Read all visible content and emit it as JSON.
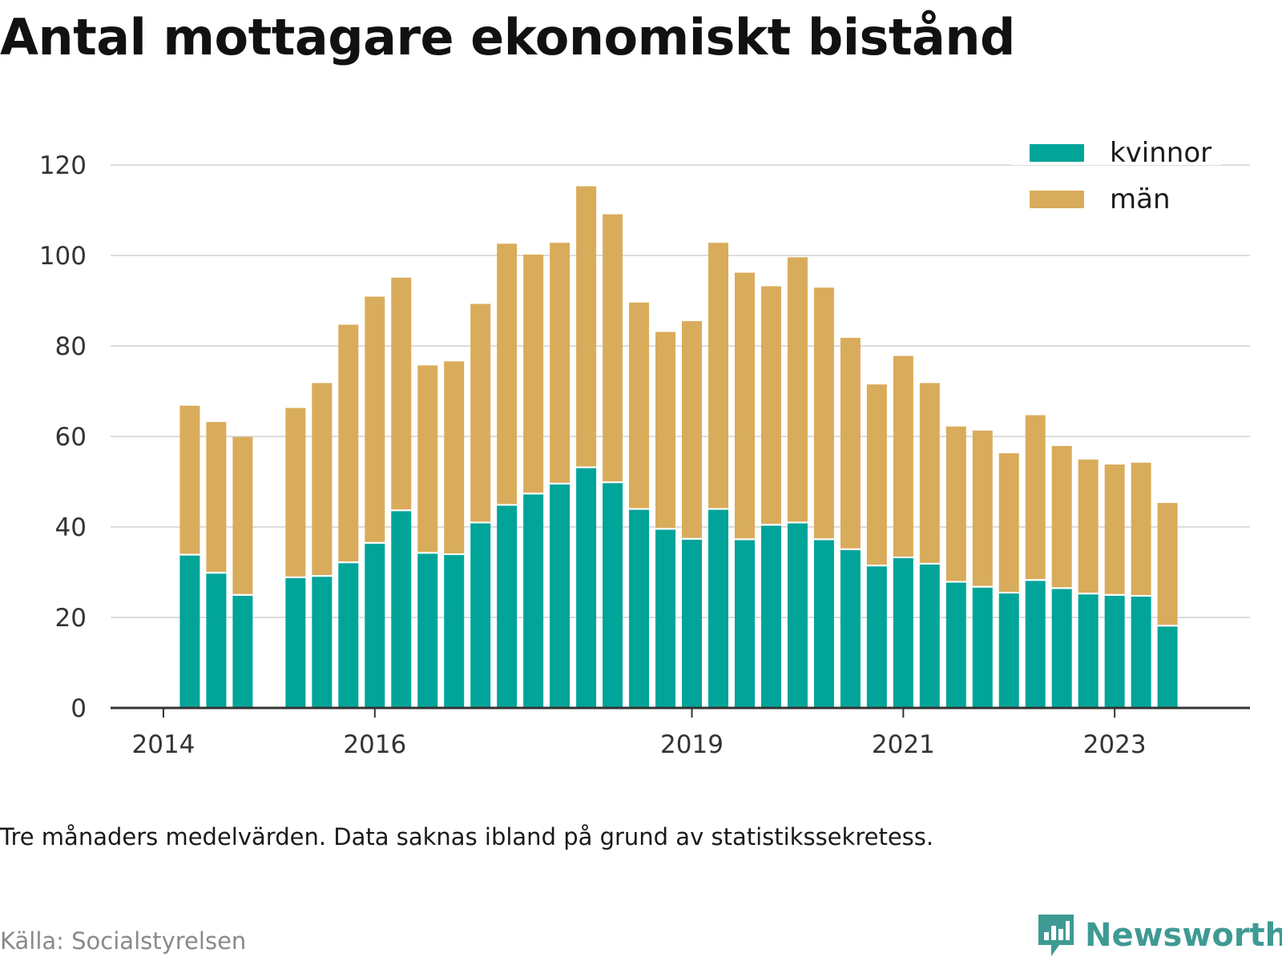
{
  "header": {
    "title": "Antal mottagare ekonomiskt bistånd"
  },
  "footer": {
    "note": "Tre månaders medelvärden. Data saknas ibland på grund av statistikssekretess.",
    "source": "Källa: Socialstyrelsen",
    "brand": "Newsworthy"
  },
  "colors": {
    "kvinnor": "#00a499",
    "man": "#d9ac5b",
    "grid": "#dcdcdc",
    "axis": "#333333",
    "brand": "#3e9a93"
  },
  "chart_data": {
    "type": "bar",
    "stacked": true,
    "title": "Antal mottagare ekonomiskt bistånd",
    "xlabel": "",
    "ylabel": "",
    "ylim": [
      0,
      120
    ],
    "yticks": [
      0,
      20,
      40,
      60,
      80,
      100,
      120
    ],
    "xticks": [
      {
        "label": "2014",
        "x": 2014.0
      },
      {
        "label": "2016",
        "x": 2016.0
      },
      {
        "label": "2019",
        "x": 2019.0
      },
      {
        "label": "2021",
        "x": 2021.0
      },
      {
        "label": "2023",
        "x": 2023.0
      }
    ],
    "x": [
      2014.25,
      2014.5,
      2014.75,
      2015.25,
      2015.5,
      2015.75,
      2016.0,
      2016.25,
      2016.5,
      2016.75,
      2017.0,
      2017.25,
      2017.5,
      2017.75,
      2018.0,
      2018.25,
      2018.5,
      2018.75,
      2019.0,
      2019.25,
      2019.5,
      2019.75,
      2020.0,
      2020.25,
      2020.5,
      2020.75,
      2021.0,
      2021.25,
      2021.5,
      2021.75,
      2022.0,
      2022.25,
      2022.5,
      2022.75,
      2023.0,
      2023.25,
      2023.5,
      2023.75
    ],
    "series": [
      {
        "name": "kvinnor",
        "values": [
          33.7,
          29.7,
          24.8,
          28.7,
          29.0,
          32.0,
          36.3,
          43.5,
          34.1,
          33.8,
          40.8,
          44.7,
          47.2,
          49.4,
          53.0,
          49.7,
          43.8,
          39.4,
          37.2,
          43.8,
          37.1,
          40.3,
          40.8,
          37.1,
          34.9,
          31.3,
          33.1,
          31.7,
          27.7,
          26.6,
          25.3,
          28.1,
          26.3,
          25.1,
          24.8,
          24.6,
          18.0,
          0
        ]
      },
      {
        "name": "män",
        "values": [
          33.1,
          33.5,
          35.1,
          37.6,
          42.8,
          52.7,
          54.6,
          51.6,
          41.6,
          42.8,
          48.5,
          57.9,
          53.0,
          53.4,
          62.3,
          59.4,
          45.8,
          43.7,
          48.3,
          59.0,
          59.1,
          52.9,
          58.8,
          55.8,
          46.9,
          40.2,
          44.7,
          40.1,
          34.5,
          34.7,
          31.0,
          36.6,
          31.6,
          29.8,
          29.0,
          29.6,
          27.3,
          0
        ]
      }
    ],
    "legend": [
      "kvinnor",
      "män"
    ],
    "legend_position": "top-right",
    "grid": true
  }
}
